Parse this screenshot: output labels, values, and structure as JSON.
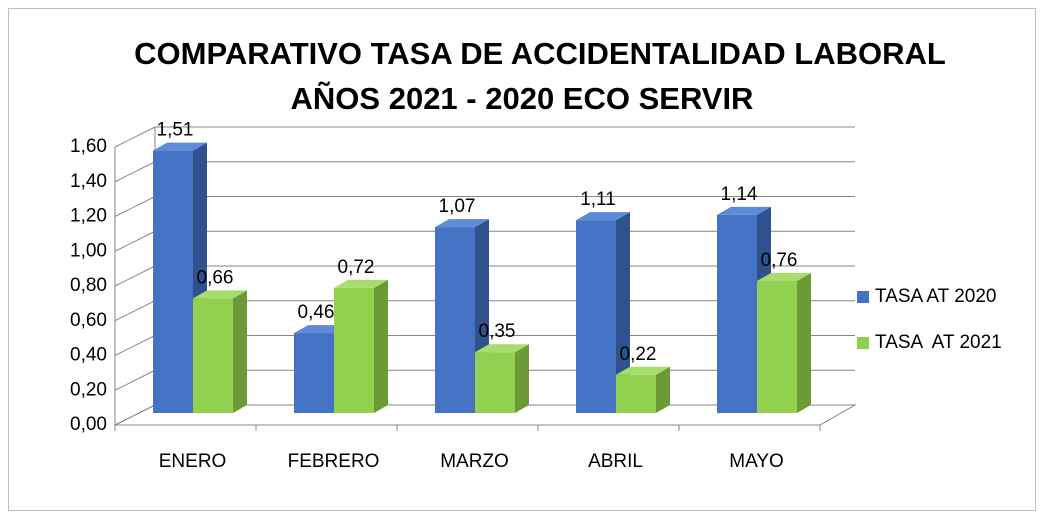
{
  "chart_data": {
    "type": "bar3d",
    "title": [
      "COMPARATIVO TASA DE ACCIDENTALIDAD LABORAL",
      "AÑOS 2021 - 2020 ECO SERVIR"
    ],
    "categories": [
      "ENERO",
      "FEBRERO",
      "MARZO",
      "ABRIL",
      "MAYO"
    ],
    "series": [
      {
        "name": "TASA AT 2020",
        "color": "#4472c4",
        "side": "#2f528f",
        "top": "#5f8ad6",
        "values": [
          1.51,
          0.46,
          1.07,
          1.11,
          1.14
        ],
        "value_labels": [
          "1,51",
          "0,46",
          "1,07",
          "1,11",
          "1,14"
        ]
      },
      {
        "name": "TASA  AT 2021",
        "color": "#92d050",
        "side": "#6b9a37",
        "top": "#a7dd6d",
        "values": [
          0.66,
          0.72,
          0.35,
          0.22,
          0.76
        ],
        "value_labels": [
          "0,66",
          "0,72",
          "0,35",
          "0,22",
          "0,76"
        ]
      }
    ],
    "ylim": [
      0,
      1.6
    ],
    "yticks": [
      {
        "value": 0,
        "label": "0,00"
      },
      {
        "value": 0.2,
        "label": "0,20"
      },
      {
        "value": 0.4,
        "label": "0,40"
      },
      {
        "value": 0.6,
        "label": "0,60"
      },
      {
        "value": 0.8,
        "label": "0,80"
      },
      {
        "value": 1.0,
        "label": "1,00"
      },
      {
        "value": 1.2,
        "label": "1,20"
      },
      {
        "value": 1.4,
        "label": "1,40"
      },
      {
        "value": 1.6,
        "label": "1,60"
      }
    ],
    "grid": true,
    "legend": "right"
  }
}
